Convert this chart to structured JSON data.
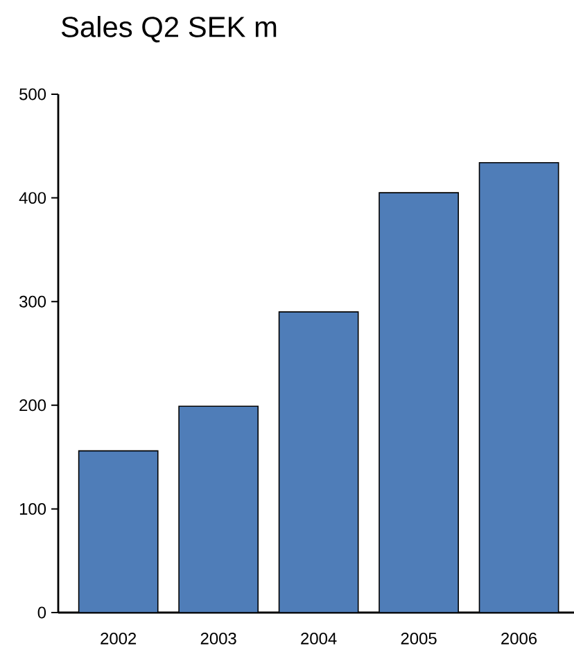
{
  "chart_data": {
    "type": "bar",
    "title": "Sales Q2 SEK m",
    "categories": [
      "2002",
      "2003",
      "2004",
      "2005",
      "2006"
    ],
    "values": [
      156,
      199,
      290,
      405,
      434
    ],
    "color": "#4f7db8",
    "ylim": [
      0,
      500
    ],
    "yticks": [
      0,
      100,
      200,
      300,
      400,
      500
    ],
    "grid": false
  }
}
